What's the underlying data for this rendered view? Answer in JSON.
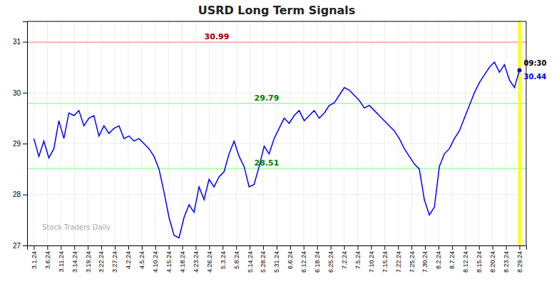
{
  "chart_data": {
    "type": "line",
    "title": "USRD Long Term Signals",
    "watermark": "Stock Traders Daily",
    "color": "blue",
    "grid": true,
    "xlim": [
      -0.5,
      36.5
    ],
    "xticks": [
      {
        "value": 0,
        "label": "3.1.24"
      },
      {
        "value": 1,
        "label": "3.6.24"
      },
      {
        "value": 2,
        "label": "3.11.24"
      },
      {
        "value": 3,
        "label": "3.14.24"
      },
      {
        "value": 4,
        "label": "3.19.24"
      },
      {
        "value": 5,
        "label": "3.22.24"
      },
      {
        "value": 6,
        "label": "3.27.24"
      },
      {
        "value": 7,
        "label": "4.2.24"
      },
      {
        "value": 8,
        "label": "4.5.24"
      },
      {
        "value": 9,
        "label": "4.10.24"
      },
      {
        "value": 10,
        "label": "4.15.24"
      },
      {
        "value": 11,
        "label": "4.18.24"
      },
      {
        "value": 12,
        "label": "4.23.24"
      },
      {
        "value": 13,
        "label": "4.26.24"
      },
      {
        "value": 14,
        "label": "5.3.24"
      },
      {
        "value": 15,
        "label": "5.8.24"
      },
      {
        "value": 16,
        "label": "5.14.24"
      },
      {
        "value": 17,
        "label": "5.28.24"
      },
      {
        "value": 18,
        "label": "5.31.24"
      },
      {
        "value": 19,
        "label": "6.6.24"
      },
      {
        "value": 20,
        "label": "6.12.24"
      },
      {
        "value": 21,
        "label": "6.18.24"
      },
      {
        "value": 22,
        "label": "6.25.24"
      },
      {
        "value": 23,
        "label": "7.2.24"
      },
      {
        "value": 24,
        "label": "7.5.24"
      },
      {
        "value": 25,
        "label": "7.10.24"
      },
      {
        "value": 26,
        "label": "7.15.24"
      },
      {
        "value": 27,
        "label": "7.22.24"
      },
      {
        "value": 28,
        "label": "7.25.24"
      },
      {
        "value": 29,
        "label": "7.30.24"
      },
      {
        "value": 30,
        "label": "8.2.24"
      },
      {
        "value": 31,
        "label": "8.7.24"
      },
      {
        "value": 32,
        "label": "8.12.24"
      },
      {
        "value": 33,
        "label": "8.15.24"
      },
      {
        "value": 34,
        "label": "8.20.24"
      },
      {
        "value": 35,
        "label": "8.23.24"
      },
      {
        "value": 36,
        "label": "8.29.24"
      }
    ],
    "ylim": [
      27.0,
      31.4
    ],
    "yticks": [
      27,
      28,
      29,
      30,
      31
    ],
    "x": [
      0,
      0.3711,
      0.7423,
      1.1134,
      1.4845,
      1.8557,
      2.2268,
      2.5979,
      2.9691,
      3.3402,
      3.7113,
      4.0825,
      4.4536,
      4.8247,
      5.1959,
      5.567,
      5.9381,
      6.3093,
      6.6804,
      7.0515,
      7.4227,
      7.7938,
      8.1649,
      8.5361,
      8.9072,
      9.2784,
      9.6495,
      10.0206,
      10.3918,
      10.7629,
      11.134,
      11.5052,
      11.8763,
      12.2474,
      12.6186,
      12.9897,
      13.3608,
      13.732,
      14.1031,
      14.4742,
      14.8454,
      15.2165,
      15.5876,
      15.9588,
      16.3299,
      16.701,
      17.0722,
      17.4433,
      17.8144,
      18.1856,
      18.5567,
      18.9278,
      19.299,
      19.6701,
      20.0412,
      20.4124,
      20.7835,
      21.1546,
      21.5258,
      21.8969,
      22.268,
      22.6392,
      23.0103,
      23.3814,
      23.7526,
      24.1237,
      24.4948,
      24.866,
      25.2371,
      25.6082,
      25.9794,
      26.3505,
      26.7216,
      27.0928,
      27.4639,
      27.8351,
      28.2062,
      28.5773,
      28.9485,
      29.3196,
      29.6907,
      30.0619,
      30.433,
      30.8041,
      31.1753,
      31.5464,
      31.9175,
      32.2887,
      32.6598,
      33.0309,
      33.4021,
      33.7732,
      34.1443,
      34.5155,
      34.8866,
      35.2577,
      35.6289,
      36
    ],
    "values": [
      29.1,
      28.75,
      29.05,
      28.72,
      28.9,
      29.45,
      29.1,
      29.6,
      29.55,
      29.65,
      29.35,
      29.5,
      29.55,
      29.15,
      29.35,
      29.2,
      29.3,
      29.35,
      29.1,
      29.15,
      29.05,
      29.1,
      29.0,
      28.9,
      28.75,
      28.5,
      28.05,
      27.55,
      27.2,
      27.15,
      27.55,
      27.8,
      27.65,
      28.15,
      27.9,
      28.3,
      28.15,
      28.35,
      28.45,
      28.8,
      29.05,
      28.75,
      28.55,
      28.15,
      28.2,
      28.55,
      28.95,
      28.8,
      29.1,
      29.3,
      29.5,
      29.4,
      29.55,
      29.65,
      29.45,
      29.55,
      29.65,
      29.5,
      29.6,
      29.75,
      29.8,
      29.95,
      30.1,
      30.05,
      29.95,
      29.85,
      29.7,
      29.75,
      29.65,
      29.55,
      29.45,
      29.35,
      29.25,
      29.1,
      28.9,
      28.75,
      28.6,
      28.5,
      27.9,
      27.6,
      27.75,
      28.55,
      28.8,
      28.9,
      29.1,
      29.25,
      29.5,
      29.75,
      30.0,
      30.2,
      30.35,
      30.5,
      30.6,
      30.4,
      30.55,
      30.25,
      30.1,
      30.44
    ],
    "hlines": [
      {
        "y": 30.99,
        "color": "#ffb3b3",
        "label_color": "darkred"
      },
      {
        "y": 29.79,
        "color": "#b3ffb3",
        "label_color": "green"
      },
      {
        "y": 28.51,
        "color": "#b3ffb3",
        "label_color": "green"
      }
    ],
    "vline": {
      "x": 36,
      "color": "yellow"
    },
    "last_point": {
      "x": 36,
      "y": 30.44,
      "time": "09:30",
      "color": "blue",
      "time_color": "black"
    }
  }
}
